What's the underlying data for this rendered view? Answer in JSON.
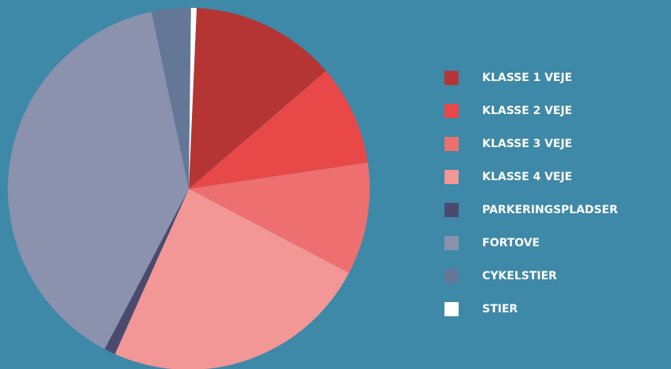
{
  "chart_data": {
    "type": "pie",
    "categories": [
      "KLASSE 1 VEJE",
      "KLASSE 2 VEJE",
      "KLASSE 3 VEJE",
      "KLASSE 4 VEJE",
      "PARKERINGSPLADSER",
      "FORTOVE",
      "CYKELSTIER",
      "STIER"
    ],
    "values": [
      13,
      9,
      10,
      24,
      1,
      39,
      3.5,
      0.5
    ],
    "colors": [
      "#b53535",
      "#e84848",
      "#ee6f6f",
      "#f29696",
      "#4a4a6e",
      "#8a92ae",
      "#647796",
      "#ffffff"
    ],
    "legend": "right"
  }
}
